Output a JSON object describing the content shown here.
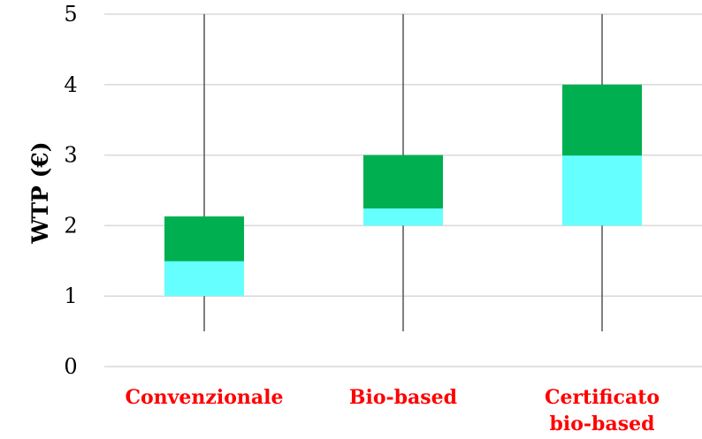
{
  "chart_data": {
    "type": "box",
    "ylabel": "WTP (€)",
    "ylim": [
      0,
      5
    ],
    "yticks": [
      0,
      1,
      2,
      3,
      4,
      5
    ],
    "grid": "horizontal",
    "categories": [
      [
        "Convenzionale"
      ],
      [
        "Bio-based"
      ],
      [
        "Certificato",
        "bio-based"
      ]
    ],
    "boxes": [
      {
        "whisker_low": 0.5,
        "q1": 1.0,
        "median": 1.5,
        "q3": 2.13,
        "whisker_high": 5.0
      },
      {
        "whisker_low": 0.5,
        "q1": 2.0,
        "median": 2.25,
        "q3": 3.0,
        "whisker_high": 5.0
      },
      {
        "whisker_low": 0.5,
        "q1": 2.0,
        "median": 3.0,
        "q3": 4.0,
        "whisker_high": 5.0
      }
    ],
    "colors": {
      "lower_box": "#66ffff",
      "upper_box": "#00b050",
      "whisker": "#555555",
      "grid": "#d9d9d9",
      "category_label": "#ff0000"
    }
  }
}
